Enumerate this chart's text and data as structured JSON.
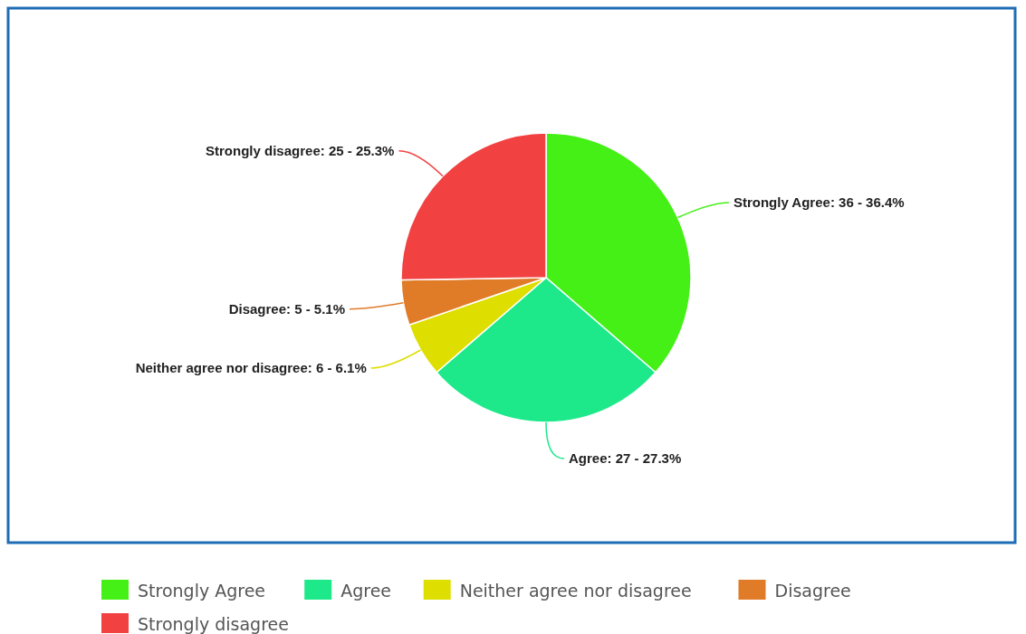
{
  "chart_data": {
    "type": "pie",
    "categories": [
      "Strongly Agree",
      "Agree",
      "Neither agree nor disagree",
      "Disagree",
      "Strongly disagree"
    ],
    "values": [
      36,
      27,
      6,
      5,
      25
    ],
    "value_labels": [
      "Strongly Agree: 36 - 36.4%",
      "Agree: 27 - 27.3%",
      "Neither agree nor disagree: 6 - 6.1%",
      "Disagree: 5 - 5.1%",
      "Strongly disagree: 25 - 25.3%"
    ],
    "colors": [
      "#44f016",
      "#1de98b",
      "#dede00",
      "#e07b28",
      "#f24141"
    ],
    "legend": "bottom"
  }
}
